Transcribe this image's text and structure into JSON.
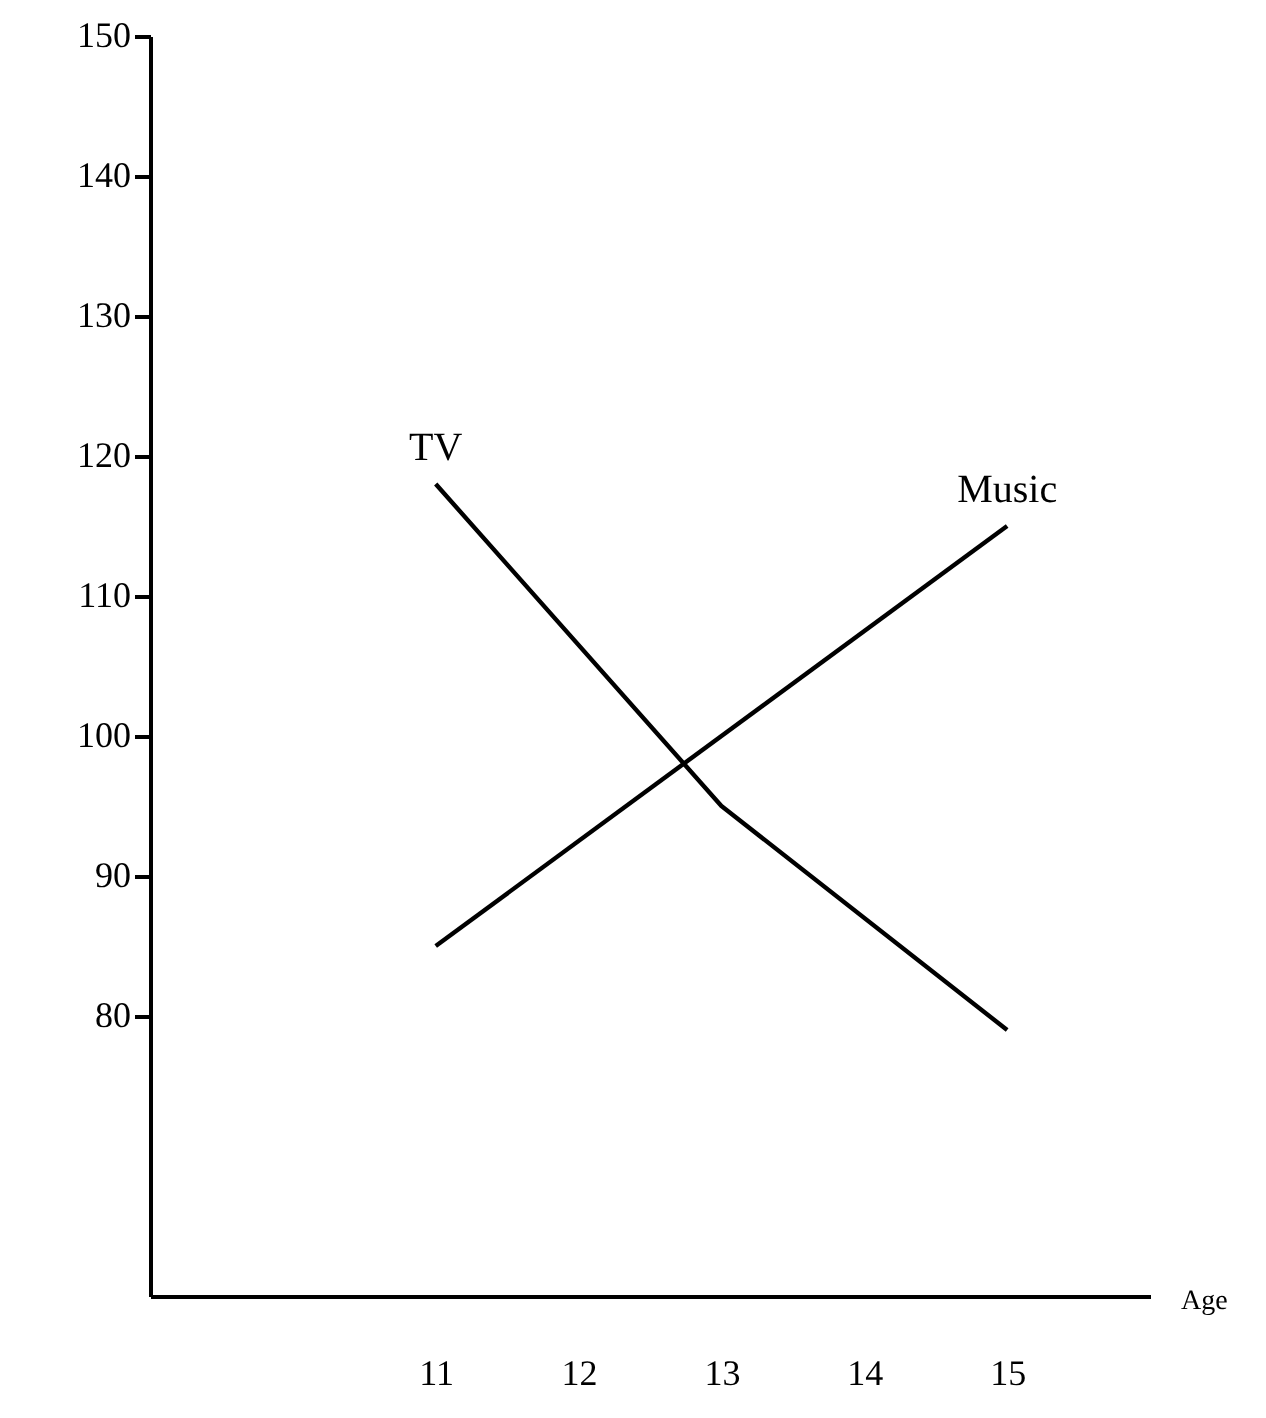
{
  "chart_data": {
    "type": "line",
    "xlabel": "Age",
    "xlim": [
      9,
      16
    ],
    "xticks": [
      11,
      12,
      13,
      14,
      15
    ],
    "ylim": [
      60,
      150
    ],
    "yticks": [
      80,
      90,
      100,
      110,
      120,
      130,
      140,
      150
    ],
    "grid": false,
    "marker": "none",
    "line_style": "solid",
    "series": [
      {
        "name": "TV",
        "color": "#000000",
        "x": [
          11,
          13,
          15
        ],
        "values": [
          118,
          95,
          79
        ]
      },
      {
        "name": "Music",
        "color": "#000000",
        "x": [
          11,
          15
        ],
        "values": [
          85,
          115
        ]
      }
    ]
  }
}
